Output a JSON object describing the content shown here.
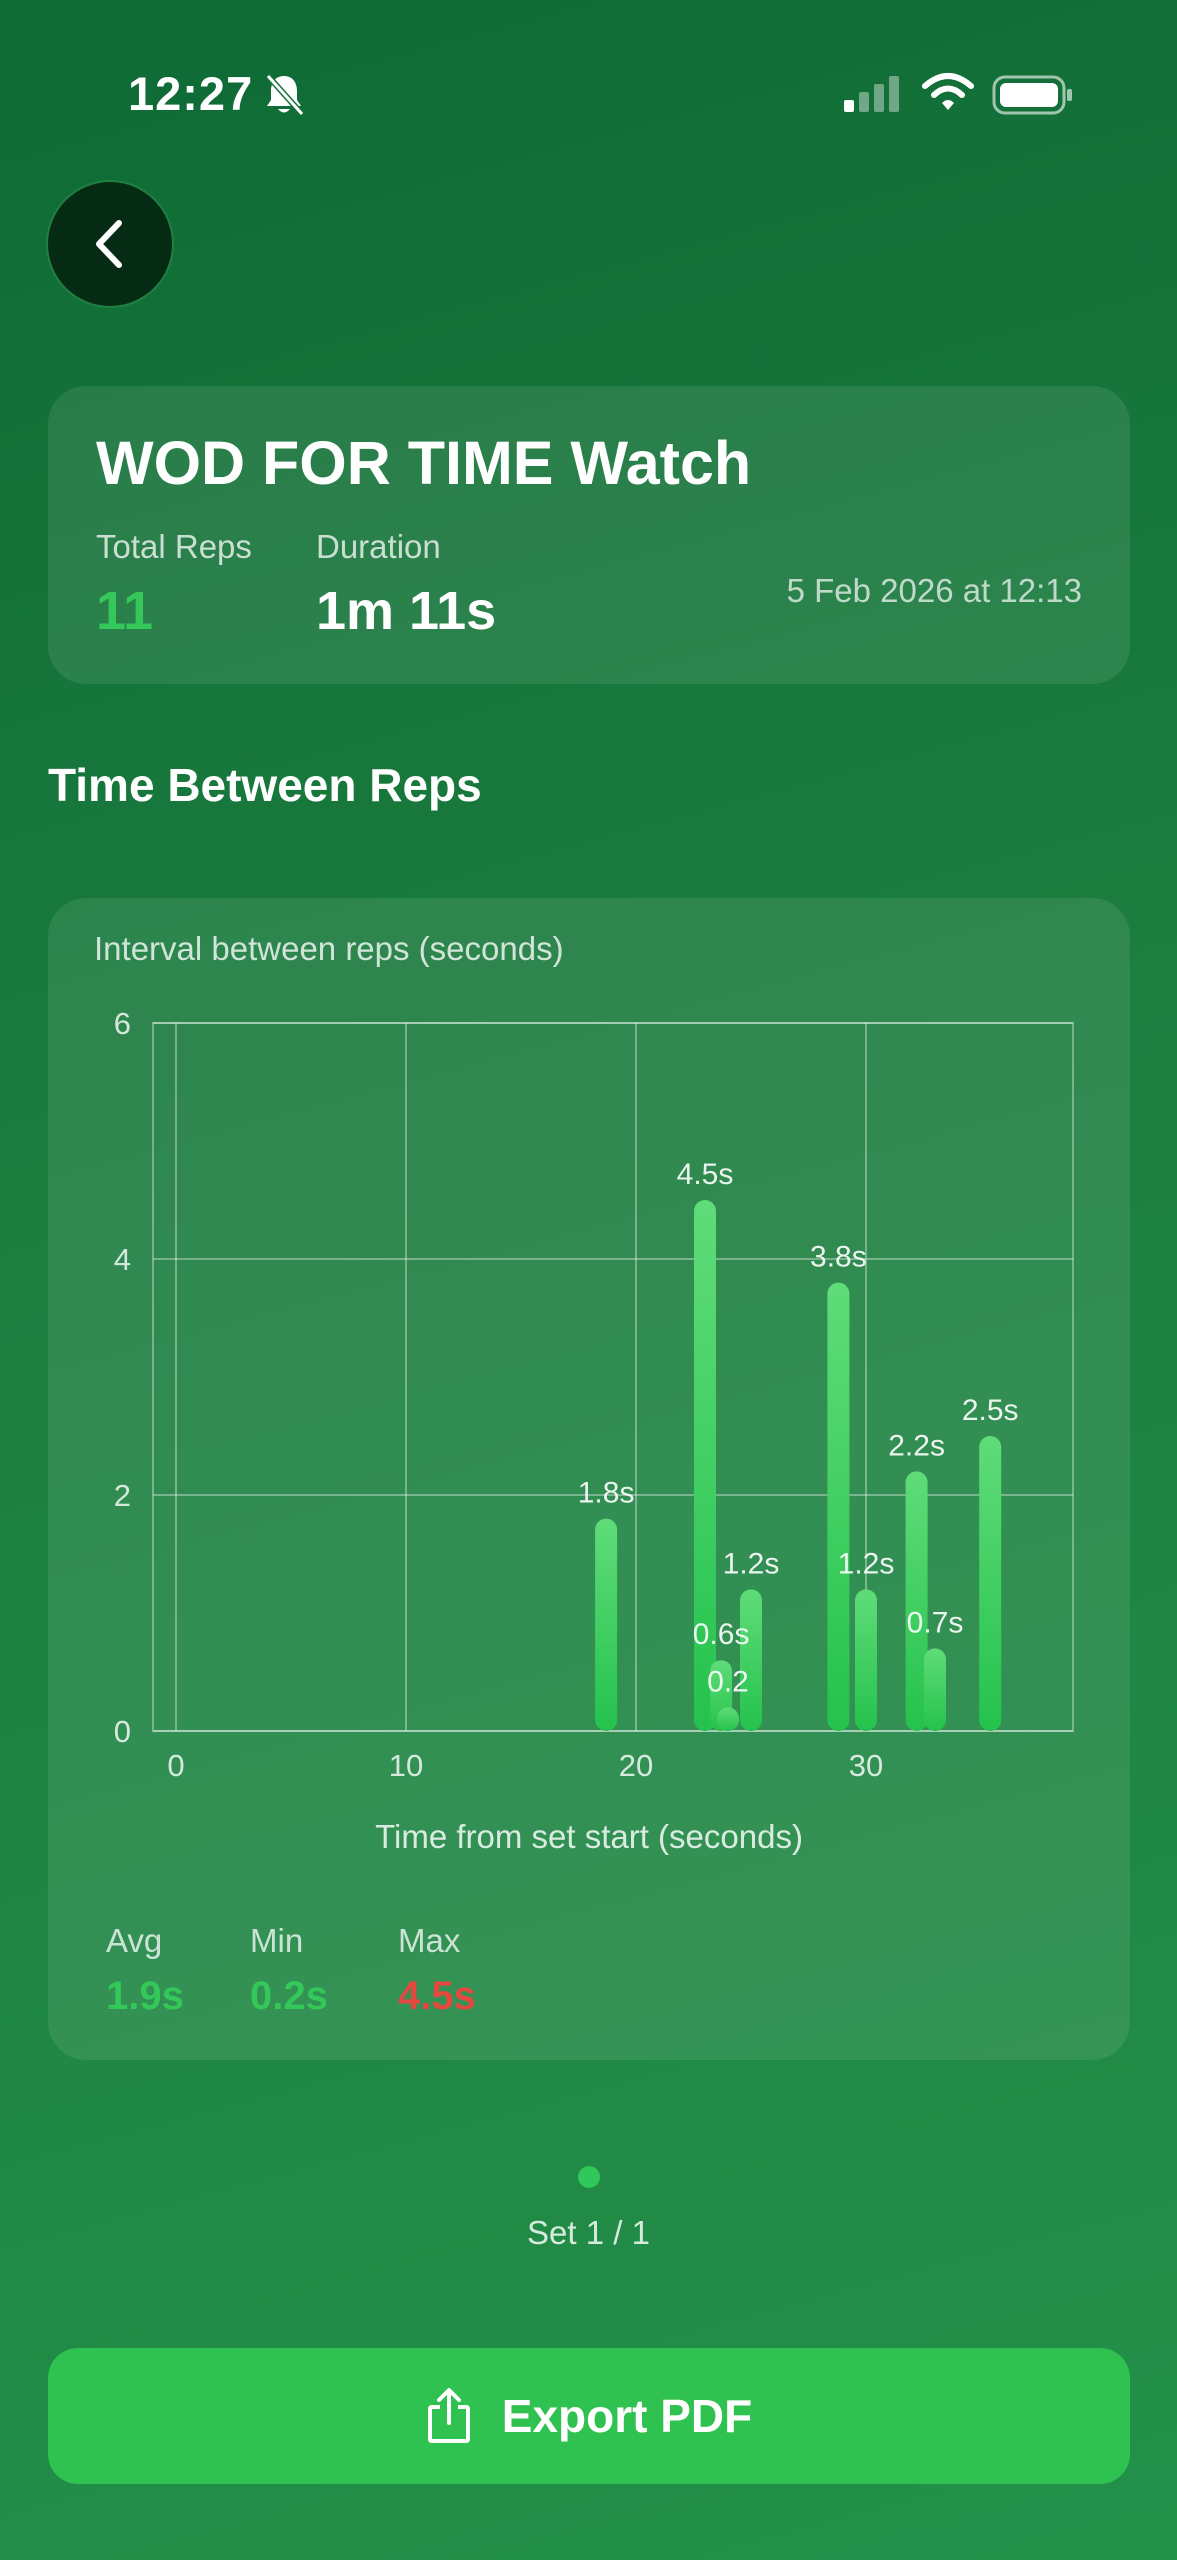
{
  "status_bar": {
    "time": "12:27",
    "icons": [
      "bell-slash-icon",
      "cellular-signal-icon",
      "wifi-icon",
      "battery-icon"
    ]
  },
  "navigation": {
    "back_icon": "chevron-left-icon"
  },
  "summary": {
    "title": "WOD FOR TIME Watch",
    "total_reps_label": "Total Reps",
    "total_reps_value": "11",
    "duration_label": "Duration",
    "duration_value": "1m 11s",
    "date": "5 Feb 2026 at 12:13"
  },
  "section_title": "Time Between Reps",
  "chart_card": {
    "caption": "Interval between reps (seconds)",
    "stats": {
      "avg_label": "Avg",
      "avg_value": "1.9s",
      "min_label": "Min",
      "min_value": "0.2s",
      "max_label": "Max",
      "max_value": "4.5s"
    }
  },
  "chart_data": {
    "type": "bar",
    "title": "Interval between reps (seconds)",
    "xlabel": "Time from set start (seconds)",
    "ylabel": "",
    "xlim": [
      -1,
      39
    ],
    "ylim": [
      0,
      6
    ],
    "x_ticks": [
      0,
      10,
      20,
      30
    ],
    "y_ticks": [
      0,
      2,
      4,
      6
    ],
    "grid": true,
    "points": [
      {
        "x": 18.7,
        "y": 1.8,
        "label": "1.8s"
      },
      {
        "x": 23.0,
        "y": 4.5,
        "label": "4.5s"
      },
      {
        "x": 23.7,
        "y": 0.6,
        "label": "0.6s"
      },
      {
        "x": 24.0,
        "y": 0.2,
        "label": "0.2"
      },
      {
        "x": 25.0,
        "y": 1.2,
        "label": "1.2s"
      },
      {
        "x": 28.8,
        "y": 3.8,
        "label": "3.8s"
      },
      {
        "x": 30.0,
        "y": 1.2,
        "label": "1.2s"
      },
      {
        "x": 32.2,
        "y": 2.2,
        "label": "2.2s"
      },
      {
        "x": 33.0,
        "y": 0.7,
        "label": "0.7s"
      },
      {
        "x": 35.4,
        "y": 2.5,
        "label": "2.5s"
      }
    ],
    "colors": {
      "bar_top": "#5fdc78",
      "bar_bottom": "#25c24d",
      "grid": "#ffffff"
    }
  },
  "pager": {
    "label": "Set 1 / 1"
  },
  "export": {
    "label": "Export PDF",
    "icon": "share-icon"
  },
  "colors": {
    "accent_green": "#34c759",
    "max_red": "#e5483f",
    "export_button": "#2fc251"
  }
}
